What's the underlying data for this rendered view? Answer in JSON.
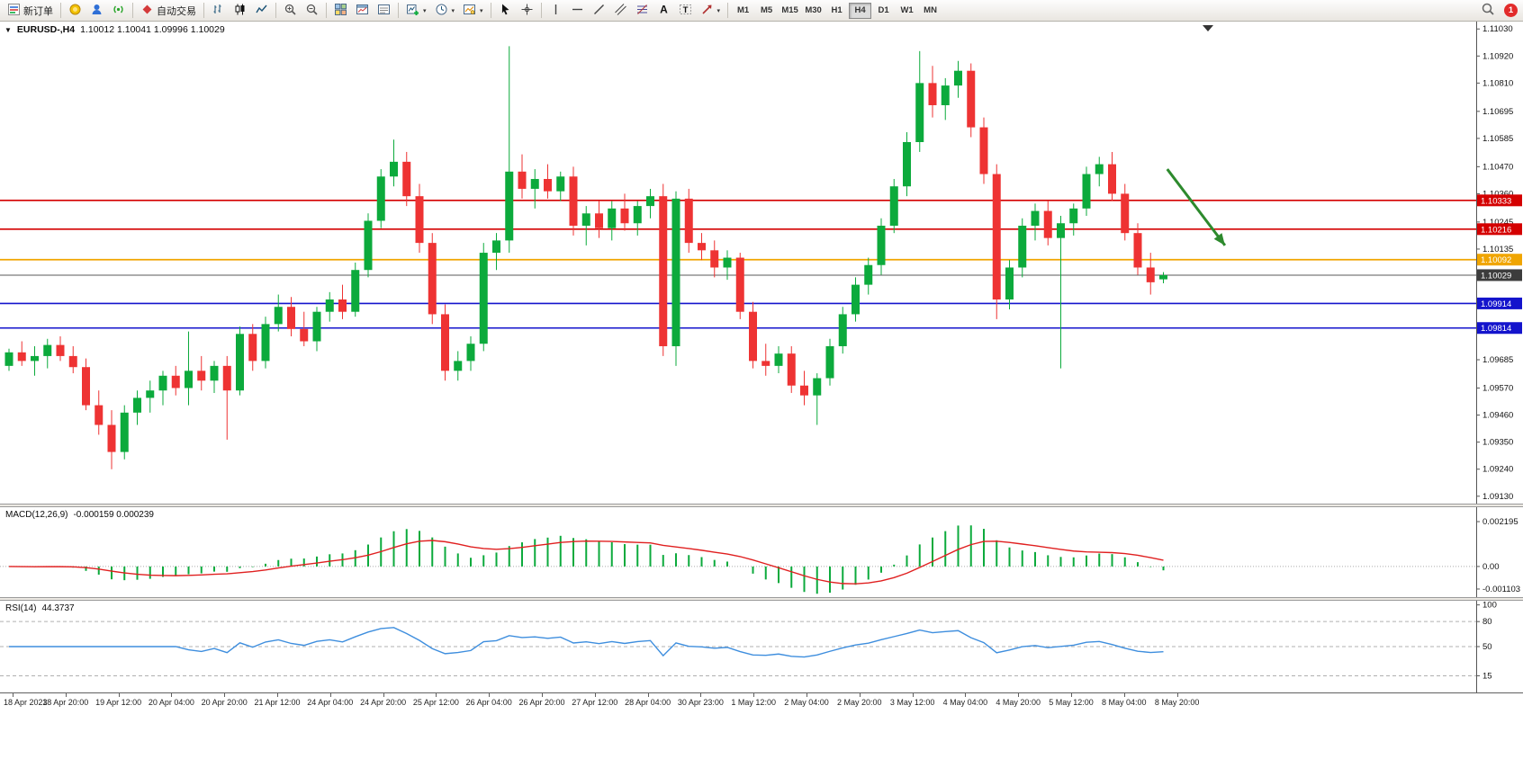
{
  "toolbar": {
    "new_order": "新订单",
    "autotrading": "自动交易",
    "timeframes": [
      "M1",
      "M5",
      "M15",
      "M30",
      "H1",
      "H4",
      "D1",
      "W1",
      "MN"
    ],
    "active_timeframe": "H4",
    "notification_badge": "1"
  },
  "chart_header": {
    "symbol": "EURUSD-,H4",
    "ohlc": "1.10012 1.10041 1.09996 1.10029"
  },
  "indicators": {
    "macd": {
      "label": "MACD(12,26,9)",
      "values": "-0.000159 0.000239"
    },
    "rsi": {
      "label": "RSI(14)",
      "value": "44.3737"
    }
  },
  "chart_data": [
    {
      "type": "candlestick",
      "title": "EURUSD-,H4",
      "ohlc_current": {
        "open": 1.10012,
        "high": 1.10041,
        "low": 1.09996,
        "close": 1.10029
      },
      "ylim": [
        1.091,
        1.1106
      ],
      "y_ticks": [
        "1.11030",
        "1.10920",
        "1.10810",
        "1.10695",
        "1.10585",
        "1.10470",
        "1.10360",
        "1.10245",
        "1.10135",
        "1.09685",
        "1.09570",
        "1.09460",
        "1.09350",
        "1.09240",
        "1.09130"
      ],
      "x_labels": [
        "18 Apr 2023",
        "18 Apr 20:00",
        "19 Apr 12:00",
        "20 Apr 04:00",
        "20 Apr 20:00",
        "21 Apr 12:00",
        "24 Apr 04:00",
        "24 Apr 20:00",
        "25 Apr 12:00",
        "26 Apr 04:00",
        "26 Apr 20:00",
        "27 Apr 12:00",
        "28 Apr 04:00",
        "30 Apr 23:00",
        "1 May 12:00",
        "2 May 04:00",
        "2 May 20:00",
        "3 May 12:00",
        "4 May 04:00",
        "4 May 20:00",
        "5 May 12:00",
        "8 May 04:00",
        "8 May 20:00"
      ],
      "colors": {
        "up": "#0caa3c",
        "down": "#ee3333"
      },
      "hlines": [
        {
          "price": 1.10333,
          "label": "1.10333",
          "color": "#d40000",
          "width": 1.6
        },
        {
          "price": 1.10216,
          "label": "1.10216",
          "color": "#d40000",
          "width": 1.6
        },
        {
          "price": 1.10092,
          "label": "1.10092",
          "color": "#f0a500",
          "width": 1.8
        },
        {
          "price": 1.10029,
          "label": "1.10029",
          "color": "#5a5a5a",
          "width": 1.0,
          "tag": "#3c3c3c"
        },
        {
          "price": 1.09914,
          "label": "1.09914",
          "color": "#1414cc",
          "width": 1.6
        },
        {
          "price": 1.09814,
          "label": "1.09814",
          "color": "#1414cc",
          "width": 1.6
        }
      ],
      "arrow": {
        "bar1": 90.3,
        "price1": 1.1046,
        "bar2": 94.8,
        "price2": 1.1015,
        "color": "#2d8a2d"
      },
      "candles": [
        [
          1.0966,
          1.0973,
          1.0964,
          1.09715
        ],
        [
          1.09715,
          1.0976,
          1.0966,
          1.0968
        ],
        [
          1.0968,
          1.0974,
          1.0962,
          1.097
        ],
        [
          1.097,
          1.0977,
          1.0965,
          1.09745
        ],
        [
          1.09745,
          1.0978,
          1.0968,
          1.097
        ],
        [
          1.097,
          1.0974,
          1.0963,
          1.09655
        ],
        [
          1.09655,
          1.0969,
          1.0948,
          1.095
        ],
        [
          1.095,
          1.0956,
          1.0938,
          1.0942
        ],
        [
          1.0942,
          1.0948,
          1.0924,
          1.0931
        ],
        [
          1.0931,
          1.095,
          1.0928,
          1.0947
        ],
        [
          1.0947,
          1.0956,
          1.0942,
          1.0953
        ],
        [
          1.0953,
          1.096,
          1.0947,
          1.0956
        ],
        [
          1.0956,
          1.0964,
          1.095,
          1.0962
        ],
        [
          1.0962,
          1.0966,
          1.0954,
          1.0957
        ],
        [
          1.0957,
          1.098,
          1.095,
          1.0964
        ],
        [
          1.0964,
          1.097,
          1.0956,
          1.096
        ],
        [
          1.096,
          1.0968,
          1.0955,
          1.0966
        ],
        [
          1.0966,
          1.097,
          1.0936,
          1.0956
        ],
        [
          1.0956,
          1.0982,
          1.0954,
          1.0979
        ],
        [
          1.0979,
          1.0983,
          1.0964,
          1.0968
        ],
        [
          1.0968,
          1.0986,
          1.0965,
          1.0983
        ],
        [
          1.0983,
          1.0995,
          1.098,
          1.099
        ],
        [
          1.099,
          1.0994,
          1.0978,
          1.0981
        ],
        [
          1.0981,
          1.0988,
          1.0974,
          1.0976
        ],
        [
          1.0976,
          1.099,
          1.0972,
          1.0988
        ],
        [
          1.0988,
          1.0996,
          1.0984,
          1.0993
        ],
        [
          1.0993,
          1.0999,
          1.0985,
          1.0988
        ],
        [
          1.0988,
          1.1008,
          1.0986,
          1.1005
        ],
        [
          1.1005,
          1.1028,
          1.1002,
          1.1025
        ],
        [
          1.1025,
          1.1046,
          1.1022,
          1.1043
        ],
        [
          1.1043,
          1.1058,
          1.1039,
          1.1049
        ],
        [
          1.1049,
          1.1053,
          1.1031,
          1.1035
        ],
        [
          1.1035,
          1.104,
          1.1012,
          1.1016
        ],
        [
          1.1016,
          1.102,
          1.0983,
          1.0987
        ],
        [
          1.0987,
          1.0991,
          1.096,
          1.0964
        ],
        [
          1.0964,
          1.0972,
          1.096,
          1.0968
        ],
        [
          1.0968,
          1.0978,
          1.0964,
          1.0975
        ],
        [
          1.0975,
          1.1016,
          1.0972,
          1.1012
        ],
        [
          1.1012,
          1.102,
          1.1005,
          1.1017
        ],
        [
          1.1017,
          1.1096,
          1.1012,
          1.1045
        ],
        [
          1.1045,
          1.1052,
          1.1034,
          1.1038
        ],
        [
          1.1038,
          1.1046,
          1.103,
          1.1042
        ],
        [
          1.1042,
          1.1048,
          1.1034,
          1.1037
        ],
        [
          1.1037,
          1.1045,
          1.1033,
          1.1043
        ],
        [
          1.1043,
          1.1047,
          1.1019,
          1.1023
        ],
        [
          1.1023,
          1.1031,
          1.1015,
          1.1028
        ],
        [
          1.1028,
          1.1033,
          1.1018,
          1.1022
        ],
        [
          1.1022,
          1.1033,
          1.1017,
          1.103
        ],
        [
          1.103,
          1.1036,
          1.1021,
          1.1024
        ],
        [
          1.1024,
          1.1033,
          1.1019,
          1.1031
        ],
        [
          1.1031,
          1.1038,
          1.1026,
          1.1035
        ],
        [
          1.1035,
          1.104,
          1.097,
          1.0974
        ],
        [
          1.0974,
          1.1037,
          1.0966,
          1.1034
        ],
        [
          1.1034,
          1.1038,
          1.1012,
          1.1016
        ],
        [
          1.1016,
          1.102,
          1.1009,
          1.1013
        ],
        [
          1.1013,
          1.1017,
          1.1002,
          1.1006
        ],
        [
          1.1006,
          1.1013,
          1.1001,
          1.101
        ],
        [
          1.101,
          1.1012,
          1.0985,
          1.0988
        ],
        [
          1.0988,
          1.0992,
          1.0965,
          1.0968
        ],
        [
          1.0968,
          1.0975,
          1.0962,
          1.0966
        ],
        [
          1.0966,
          1.0974,
          1.0963,
          1.0971
        ],
        [
          1.0971,
          1.0974,
          1.0955,
          1.0958
        ],
        [
          1.0958,
          1.0964,
          1.095,
          1.0954
        ],
        [
          1.0954,
          1.0963,
          1.0942,
          1.0961
        ],
        [
          1.0961,
          1.0977,
          1.0958,
          1.0974
        ],
        [
          1.0974,
          1.099,
          1.0971,
          1.0987
        ],
        [
          1.0987,
          1.1002,
          1.0984,
          1.0999
        ],
        [
          1.0999,
          1.101,
          1.0995,
          1.1007
        ],
        [
          1.1007,
          1.1026,
          1.1003,
          1.1023
        ],
        [
          1.1023,
          1.1042,
          1.102,
          1.1039
        ],
        [
          1.1039,
          1.1061,
          1.1035,
          1.1057
        ],
        [
          1.1057,
          1.1094,
          1.1053,
          1.1081
        ],
        [
          1.1081,
          1.1088,
          1.1067,
          1.1072
        ],
        [
          1.1072,
          1.1083,
          1.1066,
          1.108
        ],
        [
          1.108,
          1.109,
          1.1075,
          1.1086
        ],
        [
          1.1086,
          1.1089,
          1.1059,
          1.1063
        ],
        [
          1.1063,
          1.1067,
          1.104,
          1.1044
        ],
        [
          1.1044,
          1.1048,
          1.0985,
          1.0993
        ],
        [
          1.0993,
          1.1009,
          1.0989,
          1.1006
        ],
        [
          1.1006,
          1.1026,
          1.1002,
          1.1023
        ],
        [
          1.1023,
          1.1032,
          1.1017,
          1.1029
        ],
        [
          1.1029,
          1.1033,
          1.1015,
          1.1018
        ],
        [
          1.1018,
          1.1027,
          1.0965,
          1.1024
        ],
        [
          1.1024,
          1.1032,
          1.1019,
          1.103
        ],
        [
          1.103,
          1.1047,
          1.1027,
          1.1044
        ],
        [
          1.1044,
          1.1051,
          1.1039,
          1.1048
        ],
        [
          1.1048,
          1.1053,
          1.1033,
          1.1036
        ],
        [
          1.1036,
          1.104,
          1.1017,
          1.102
        ],
        [
          1.102,
          1.1024,
          1.1003,
          1.1006
        ],
        [
          1.1006,
          1.1012,
          1.0995,
          1.1
        ],
        [
          1.10012,
          1.10041,
          1.09996,
          1.10029
        ]
      ]
    },
    {
      "type": "macd-histogram",
      "label": "MACD(12,26,9)",
      "params": [
        12,
        26,
        9
      ],
      "current_values": [
        -0.000159,
        0.000239
      ],
      "ylim": [
        -0.0015,
        0.0029
      ],
      "y_ticks": [
        "0.002195",
        "0.00",
        "-0.001103"
      ],
      "colors": {
        "histogram": "#0caa3c",
        "signal": "#e02020"
      }
    },
    {
      "type": "rsi-line",
      "label": "RSI(14)",
      "period": 14,
      "current_value": 44.3737,
      "ylim": [
        -5,
        105
      ],
      "levels": [
        80,
        50,
        15
      ],
      "y_ticks": [
        "100",
        "80",
        "50",
        "15"
      ],
      "colors": {
        "line": "#3e8ede",
        "level": "#b0b0b0"
      }
    }
  ]
}
